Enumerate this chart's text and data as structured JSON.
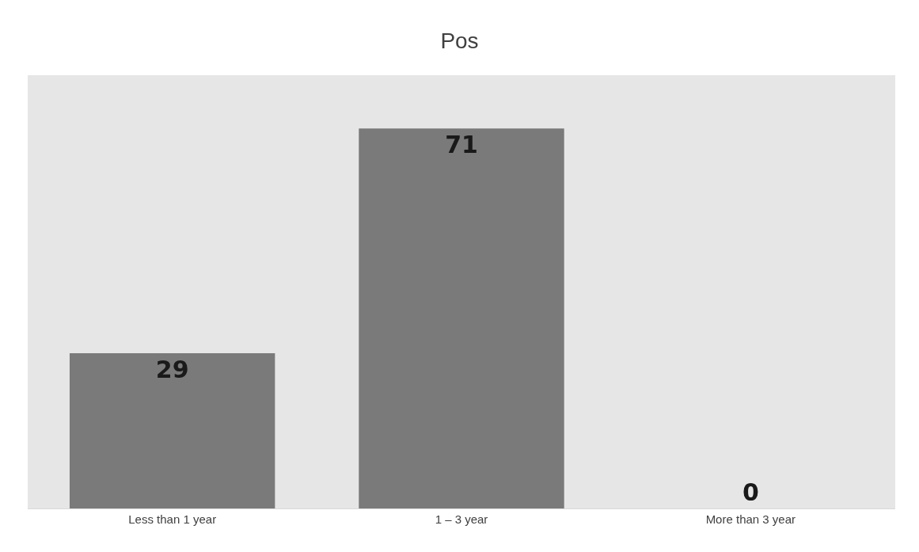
{
  "chart_data": {
    "type": "bar",
    "title": "Pos",
    "categories": [
      "Less than 1 year",
      "1 – 3 year",
      "More than 3 year"
    ],
    "values": [
      29,
      71,
      0
    ],
    "color": "#7a7a7a",
    "data_labels": true
  }
}
